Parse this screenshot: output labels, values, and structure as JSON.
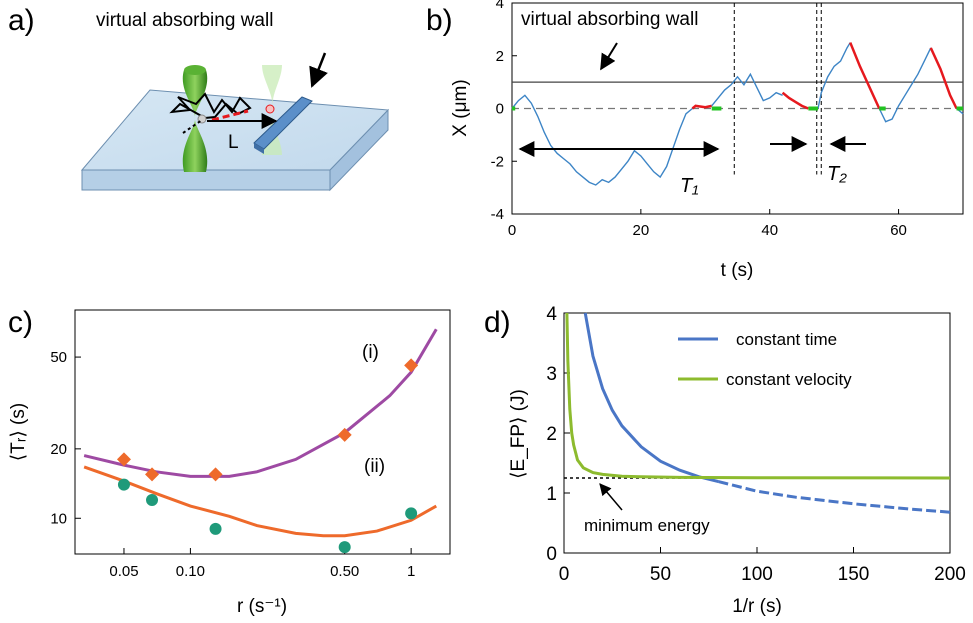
{
  "panels": {
    "a": {
      "label": "a)",
      "wall_text": "virtual absorbing wall",
      "distance_label": "L"
    },
    "b": {
      "label": "b)",
      "wall_text": "virtual absorbing wall",
      "t1_label": "T₁",
      "t2_label": "T₂"
    },
    "c": {
      "label": "c)"
    },
    "d": {
      "label": "d)",
      "annotation": "minimum energy"
    }
  },
  "chart_data": [
    {
      "id": "b",
      "type": "line",
      "xlabel": "t (s)",
      "ylabel": "X (μm)",
      "xlim": [
        0,
        70
      ],
      "ylim": [
        -4,
        4
      ],
      "xticks": [
        0,
        20,
        40,
        60
      ],
      "yticks": [
        -4,
        -2,
        0,
        2,
        4
      ],
      "reference_lines": {
        "wall": 1,
        "origin": 0
      },
      "markers_t": [
        34.5,
        47.3,
        48.0
      ],
      "series": [
        {
          "role": "diffusion",
          "color": "#3d85c6",
          "points": [
            [
              0,
              0
            ],
            [
              1,
              0.3
            ],
            [
              2,
              0.5
            ],
            [
              3,
              0.2
            ],
            [
              4,
              -0.3
            ],
            [
              5,
              -0.9
            ],
            [
              6,
              -1.4
            ],
            [
              7,
              -1.7
            ],
            [
              8,
              -1.9
            ],
            [
              9,
              -2.1
            ],
            [
              10,
              -2.4
            ],
            [
              11,
              -2.6
            ],
            [
              12,
              -2.8
            ],
            [
              13,
              -2.9
            ],
            [
              14,
              -2.7
            ],
            [
              15,
              -2.8
            ],
            [
              16,
              -2.6
            ],
            [
              17,
              -2.3
            ],
            [
              18,
              -2.0
            ],
            [
              19,
              -1.6
            ],
            [
              20,
              -1.8
            ],
            [
              21,
              -2.1
            ],
            [
              22,
              -2.4
            ],
            [
              23,
              -2.6
            ],
            [
              24,
              -2.2
            ],
            [
              25,
              -1.5
            ],
            [
              26,
              -0.8
            ],
            [
              27,
              -0.2
            ],
            [
              28,
              0.0
            ]
          ]
        },
        {
          "role": "return",
          "color": "#e6191e",
          "points": [
            [
              28,
              0.0
            ],
            [
              28.5,
              0.1
            ],
            [
              30,
              0.05
            ],
            [
              31,
              0.1
            ]
          ]
        },
        {
          "role": "diffusion",
          "color": "#3d85c6",
          "points": [
            [
              31,
              0.1
            ],
            [
              32,
              0.4
            ],
            [
              33,
              0.7
            ],
            [
              34,
              0.9
            ],
            [
              35,
              1.2
            ],
            [
              36,
              0.9
            ],
            [
              37,
              1.3
            ],
            [
              38,
              0.8
            ],
            [
              39,
              0.3
            ],
            [
              40,
              0.4
            ],
            [
              41,
              0.6
            ],
            [
              42,
              0.5
            ]
          ]
        },
        {
          "role": "return",
          "color": "#e6191e",
          "points": [
            [
              42,
              0.6
            ],
            [
              43,
              0.4
            ],
            [
              44,
              0.25
            ],
            [
              45,
              0.1
            ],
            [
              46,
              0.0
            ]
          ]
        },
        {
          "role": "diffusion",
          "color": "#3d85c6",
          "points": [
            [
              47.5,
              0.0
            ],
            [
              48,
              0.6
            ],
            [
              49,
              1.2
            ],
            [
              50,
              1.6
            ],
            [
              51,
              1.8
            ],
            [
              52,
              2.3
            ],
            [
              52.5,
              2.5
            ]
          ]
        },
        {
          "role": "return",
          "color": "#e6191e",
          "points": [
            [
              52.5,
              2.5
            ],
            [
              54,
              1.6
            ],
            [
              55.5,
              0.8
            ],
            [
              57,
              0.0
            ]
          ]
        },
        {
          "role": "diffusion",
          "color": "#3d85c6",
          "points": [
            [
              57,
              0.0
            ],
            [
              58,
              -0.5
            ],
            [
              59,
              -0.4
            ],
            [
              60,
              0.1
            ],
            [
              61,
              0.5
            ],
            [
              62,
              0.9
            ],
            [
              63,
              1.3
            ],
            [
              64,
              1.8
            ],
            [
              65,
              2.3
            ]
          ]
        },
        {
          "role": "return",
          "color": "#e6191e",
          "points": [
            [
              65,
              2.3
            ],
            [
              66.5,
              1.5
            ],
            [
              68,
              0.5
            ],
            [
              69,
              0.0
            ]
          ]
        },
        {
          "role": "diffusion",
          "color": "#3d85c6",
          "points": [
            [
              69,
              0.0
            ],
            [
              70,
              -0.2
            ]
          ]
        }
      ],
      "rest_segments": [
        [
          [
            0,
            0
          ],
          [
            0.5,
            0
          ]
        ],
        [
          [
            31,
            0
          ],
          [
            32.5,
            0
          ]
        ],
        [
          [
            46,
            0
          ],
          [
            47.5,
            0
          ]
        ],
        [
          [
            57,
            0
          ],
          [
            58,
            0
          ]
        ],
        [
          [
            69,
            0
          ],
          [
            70,
            0
          ]
        ]
      ]
    },
    {
      "id": "c",
      "type": "scatter",
      "xlabel": "r (s⁻¹)",
      "ylabel": "⟨Tᵣ⟩ (s)",
      "xscale": "log",
      "yscale": "log",
      "xlim": [
        0.03,
        1.5
      ],
      "ylim": [
        7,
        80
      ],
      "xticks": [
        0.05,
        0.1,
        0.5,
        1
      ],
      "xtick_labels": [
        "0.05",
        "0.10",
        "0.50",
        "1"
      ],
      "yticks": [
        10,
        20,
        50
      ],
      "yticks_labels": [
        "10",
        "20",
        "50"
      ],
      "series": [
        {
          "name": "(i)",
          "marker": "diamond",
          "color": "#ee6a2b",
          "curve_color": "#9e4aa3",
          "x": [
            0.05,
            0.067,
            0.13,
            0.5,
            1.0
          ],
          "y": [
            18,
            15.5,
            15.5,
            23,
            46
          ],
          "curve_x": [
            0.033,
            0.05,
            0.07,
            0.1,
            0.15,
            0.2,
            0.3,
            0.5,
            0.8,
            1.0,
            1.3
          ],
          "curve_y": [
            18.7,
            17.0,
            15.9,
            15.2,
            15.2,
            15.9,
            18.0,
            23.5,
            34,
            43,
            66
          ]
        },
        {
          "name": "(ii)",
          "marker": "circle",
          "color": "#1f9a7a",
          "curve_color": "#ee6a2b",
          "x": [
            0.05,
            0.067,
            0.13,
            0.5,
            1.0
          ],
          "y": [
            14,
            12,
            9,
            7.5,
            10.5
          ],
          "curve_x": [
            0.033,
            0.05,
            0.07,
            0.1,
            0.15,
            0.2,
            0.3,
            0.4,
            0.5,
            0.7,
            1.0,
            1.3
          ],
          "curve_y": [
            16.7,
            14.5,
            12.8,
            11.3,
            10.2,
            9.3,
            8.6,
            8.4,
            8.4,
            8.8,
            9.8,
            11.3
          ]
        }
      ]
    },
    {
      "id": "d",
      "type": "line",
      "xlabel": "1/r (s)",
      "ylabel": "⟨E_FP⟩ (J)",
      "xlim": [
        0,
        200
      ],
      "ylim": [
        0,
        4
      ],
      "xticks": [
        0,
        50,
        100,
        150,
        200
      ],
      "yticks": [
        0,
        1,
        2,
        3,
        4
      ],
      "min_energy": 1.25,
      "series": [
        {
          "name": "constant time",
          "color": "#4a76c6",
          "dashed_after_x": 80,
          "x": [
            11,
            15,
            20,
            25,
            30,
            40,
            50,
            60,
            70,
            80,
            100,
            120,
            150,
            180,
            200
          ],
          "y": [
            4.0,
            3.28,
            2.74,
            2.38,
            2.12,
            1.77,
            1.53,
            1.38,
            1.27,
            1.19,
            1.03,
            0.93,
            0.82,
            0.73,
            0.68
          ]
        },
        {
          "name": "constant velocity",
          "color": "#8dbb2e",
          "x": [
            1.5,
            2,
            3,
            4,
            5,
            7,
            10,
            15,
            20,
            30,
            40,
            60,
            100,
            200
          ],
          "y": [
            4.0,
            3.2,
            2.4,
            2.0,
            1.8,
            1.55,
            1.42,
            1.34,
            1.31,
            1.28,
            1.27,
            1.26,
            1.255,
            1.25
          ]
        }
      ]
    }
  ]
}
